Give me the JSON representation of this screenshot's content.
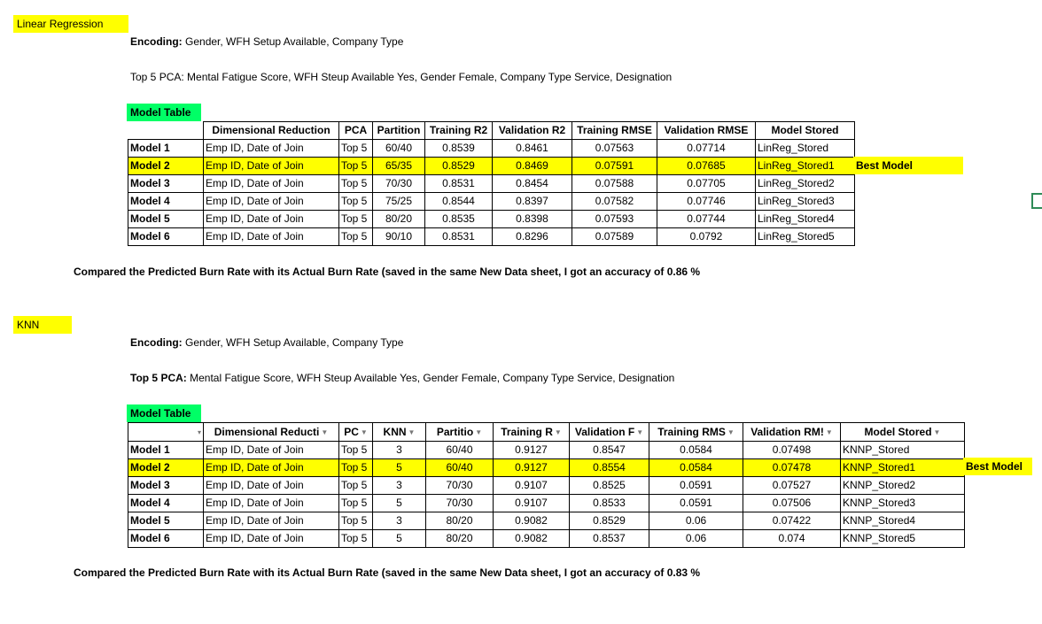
{
  "sections": [
    {
      "label": "Linear Regression",
      "encoding_label": "Encoding:",
      "encoding_value": " Gender, WFH Setup Available, Company Type",
      "pca_label": "",
      "pca_value": "Top 5 PCA: Mental Fatigue Score, WFH Steup Available Yes, Gender Female, Company Type Service, Designation",
      "table_title": "Model Table",
      "headers": [
        "Dimensional Reduction",
        "PCA",
        "Partition",
        "Training R2",
        "Validation R2",
        "Training RMSE",
        "Validation RMSE",
        "Model Stored"
      ],
      "rows": [
        [
          "Model 1",
          "Emp ID, Date of Join",
          "Top 5",
          "60/40",
          "0.8539",
          "0.8461",
          "0.07563",
          "0.07714",
          "LinReg_Stored"
        ],
        [
          "Model 2",
          "Emp ID, Date of Join",
          "Top 5",
          "65/35",
          "0.8529",
          "0.8469",
          "0.07591",
          "0.07685",
          "LinReg_Stored1"
        ],
        [
          "Model 3",
          "Emp ID, Date of Join",
          "Top 5",
          "70/30",
          "0.8531",
          "0.8454",
          "0.07588",
          "0.07705",
          "LinReg_Stored2"
        ],
        [
          "Model 4",
          "Emp ID, Date of Join",
          "Top 5",
          "75/25",
          "0.8544",
          "0.8397",
          "0.07582",
          "0.07746",
          "LinReg_Stored3"
        ],
        [
          "Model 5",
          "Emp ID, Date of Join",
          "Top 5",
          "80/20",
          "0.8535",
          "0.8398",
          "0.07593",
          "0.07744",
          "LinReg_Stored4"
        ],
        [
          "Model 6",
          "Emp ID, Date of Join",
          "Top 5",
          "90/10",
          "0.8531",
          "0.8296",
          "0.07589",
          "0.0792",
          "LinReg_Stored5"
        ]
      ],
      "best_label": "Best Model",
      "summary_prefix": "Compared the Predicted Burn Rate with its Actual Burn Rate (saved in the same New Data sheet, I got an accuracy of ",
      "summary_value": "0.86 %"
    },
    {
      "label": "KNN",
      "encoding_label": "Encoding:",
      "encoding_value": " Gender, WFH Setup Available, Company Type",
      "pca_label": "Top 5 PCA:",
      "pca_value": " Mental Fatigue Score, WFH Steup Available Yes, Gender Female, Company Type Service, Designation",
      "table_title": "Model Table",
      "headers": [
        "Dimensional Reducti",
        "PC",
        "KNN",
        "Partitio",
        "Training R",
        "Validation F",
        "Training RMS",
        "Validation RM!",
        "Model Stored"
      ],
      "rows": [
        [
          "Model 1",
          "Emp ID, Date of Join",
          "Top 5",
          "3",
          "60/40",
          "0.9127",
          "0.8547",
          "0.0584",
          "0.07498",
          "KNNP_Stored"
        ],
        [
          "Model 2",
          "Emp ID, Date of Join",
          "Top 5",
          "5",
          "60/40",
          "0.9127",
          "0.8554",
          "0.0584",
          "0.07478",
          "KNNP_Stored1"
        ],
        [
          "Model 3",
          "Emp ID, Date of Join",
          "Top 5",
          "3",
          "70/30",
          "0.9107",
          "0.8525",
          "0.0591",
          "0.07527",
          "KNNP_Stored2"
        ],
        [
          "Model 4",
          "Emp ID, Date of Join",
          "Top 5",
          "5",
          "70/30",
          "0.9107",
          "0.8533",
          "0.0591",
          "0.07506",
          "KNNP_Stored3"
        ],
        [
          "Model 5",
          "Emp ID, Date of Join",
          "Top 5",
          "3",
          "80/20",
          "0.9082",
          "0.8529",
          "0.06",
          "0.07422",
          "KNNP_Stored4"
        ],
        [
          "Model 6",
          "Emp ID, Date of Join",
          "Top 5",
          "5",
          "80/20",
          "0.9082",
          "0.8537",
          "0.06",
          "0.074",
          "KNNP_Stored5"
        ]
      ],
      "best_label": "Best Model",
      "summary_prefix": "Compared the Predicted Burn Rate with its Actual Burn Rate (saved in the same New Data sheet, I got an accuracy of ",
      "summary_value": "0.83 %"
    }
  ],
  "icons": {
    "filter": "filter-dropdown-icon",
    "sort": "sort-indicator-icon"
  },
  "colors": {
    "highlight_yellow": "#ffff00",
    "highlight_green": "#00ff66"
  }
}
